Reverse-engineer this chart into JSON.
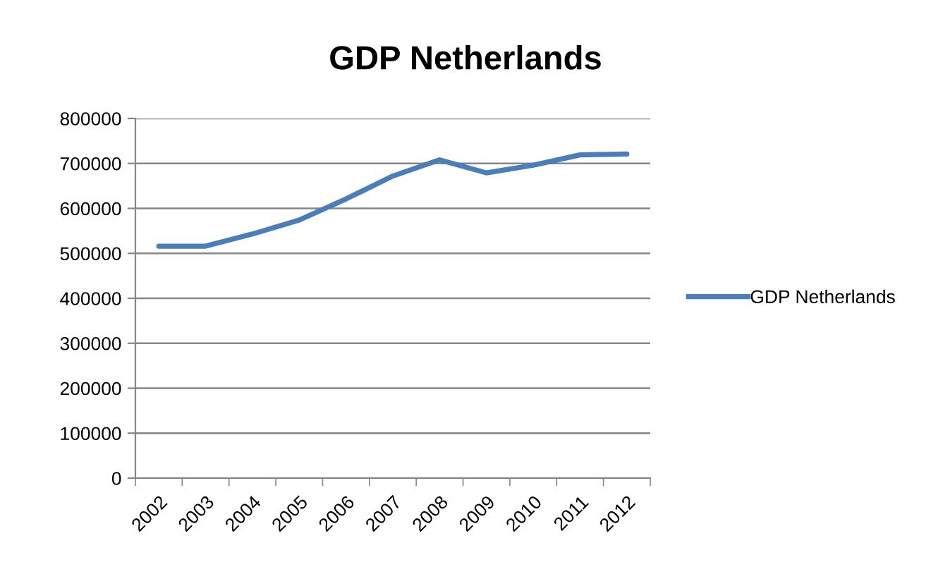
{
  "chart_data": {
    "type": "line",
    "title": "GDP Netherlands",
    "categories": [
      "2002",
      "2003",
      "2004",
      "2005",
      "2006",
      "2007",
      "2008",
      "2009",
      "2010",
      "2011",
      "2012"
    ],
    "series": [
      {
        "name": "GDP Netherlands",
        "color": "#4a7ebb",
        "values": [
          516000,
          516000,
          543000,
          574000,
          621000,
          672000,
          708000,
          679000,
          696000,
          719000,
          721000
        ]
      }
    ],
    "ylim": [
      0,
      800000
    ],
    "yticks": [
      0,
      100000,
      200000,
      300000,
      400000,
      500000,
      600000,
      700000,
      800000
    ],
    "grid": "y",
    "legend": "right",
    "marker": "none",
    "line_style": "solid"
  }
}
